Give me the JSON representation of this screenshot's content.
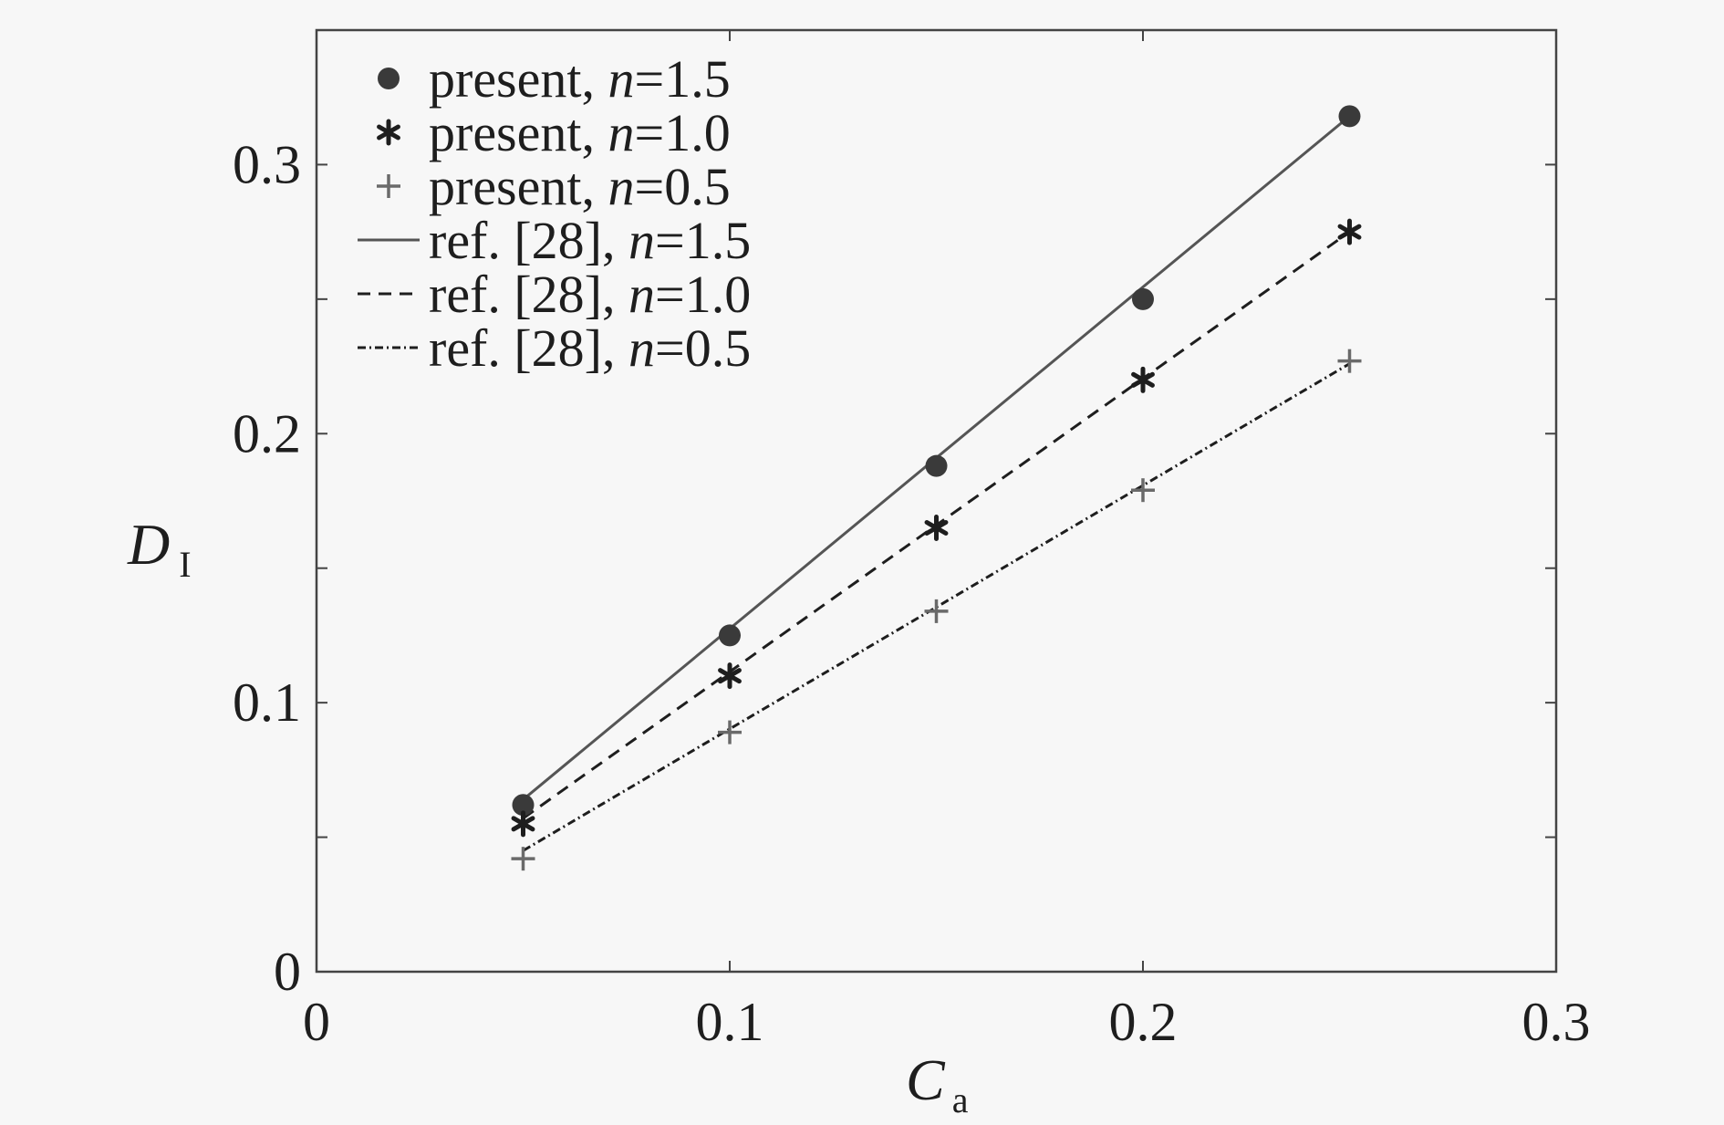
{
  "chart_data": {
    "type": "scatter",
    "title": "",
    "xlabel": "C",
    "xlabel_sub": "a",
    "ylabel": "D",
    "ylabel_sub": "I",
    "xlim": [
      0,
      0.3
    ],
    "ylim": [
      0,
      0.35
    ],
    "xticks": [
      0,
      0.1,
      0.2,
      0.3
    ],
    "xtick_labels": [
      "0",
      "0.1",
      "0.2",
      "0.3"
    ],
    "yticks": [
      0,
      0.1,
      0.2,
      0.3
    ],
    "ytick_labels": [
      "0",
      "0.1",
      "0.2",
      "0.3"
    ],
    "grid": false,
    "legend_position": "top-left",
    "series": [
      {
        "name": "present, n=1.5",
        "label_prefix": "present, ",
        "label_var": "n",
        "label_value": "=1.5",
        "kind": "markers",
        "marker": "circle",
        "color": "#3a3a3a",
        "x": [
          0.05,
          0.1,
          0.15,
          0.2,
          0.25
        ],
        "y": [
          0.062,
          0.125,
          0.188,
          0.25,
          0.318
        ]
      },
      {
        "name": "present, n=1.0",
        "label_prefix": "present, ",
        "label_var": "n",
        "label_value": "=1.0",
        "kind": "markers",
        "marker": "asterisk",
        "color": "#1e1e1e",
        "x": [
          0.05,
          0.1,
          0.15,
          0.2,
          0.25
        ],
        "y": [
          0.055,
          0.11,
          0.165,
          0.22,
          0.275
        ]
      },
      {
        "name": "present, n=0.5",
        "label_prefix": "present, ",
        "label_var": "n",
        "label_value": "=0.5",
        "kind": "markers",
        "marker": "plus",
        "color": "#6a6a6a",
        "x": [
          0.05,
          0.1,
          0.15,
          0.2,
          0.25
        ],
        "y": [
          0.042,
          0.089,
          0.134,
          0.179,
          0.227
        ]
      },
      {
        "name": "ref. [28], n=1.5",
        "label_prefix": "ref. [28], ",
        "label_var": "n",
        "label_value": "=1.5",
        "kind": "line",
        "dash": "solid",
        "color": "#555555",
        "x": [
          0.05,
          0.25
        ],
        "y": [
          0.064,
          0.318
        ]
      },
      {
        "name": "ref. [28], n=1.0",
        "label_prefix": "ref. [28], ",
        "label_var": "n",
        "label_value": "=1.0",
        "kind": "line",
        "dash": "dashed",
        "color": "#1e1e1e",
        "x": [
          0.05,
          0.25
        ],
        "y": [
          0.057,
          0.275
        ]
      },
      {
        "name": "ref. [28], n=0.5",
        "label_prefix": "ref. [28], ",
        "label_var": "n",
        "label_value": "=0.5",
        "kind": "line",
        "dash": "dashdot",
        "color": "#1e1e1e",
        "x": [
          0.05,
          0.25
        ],
        "y": [
          0.045,
          0.226
        ]
      }
    ]
  }
}
